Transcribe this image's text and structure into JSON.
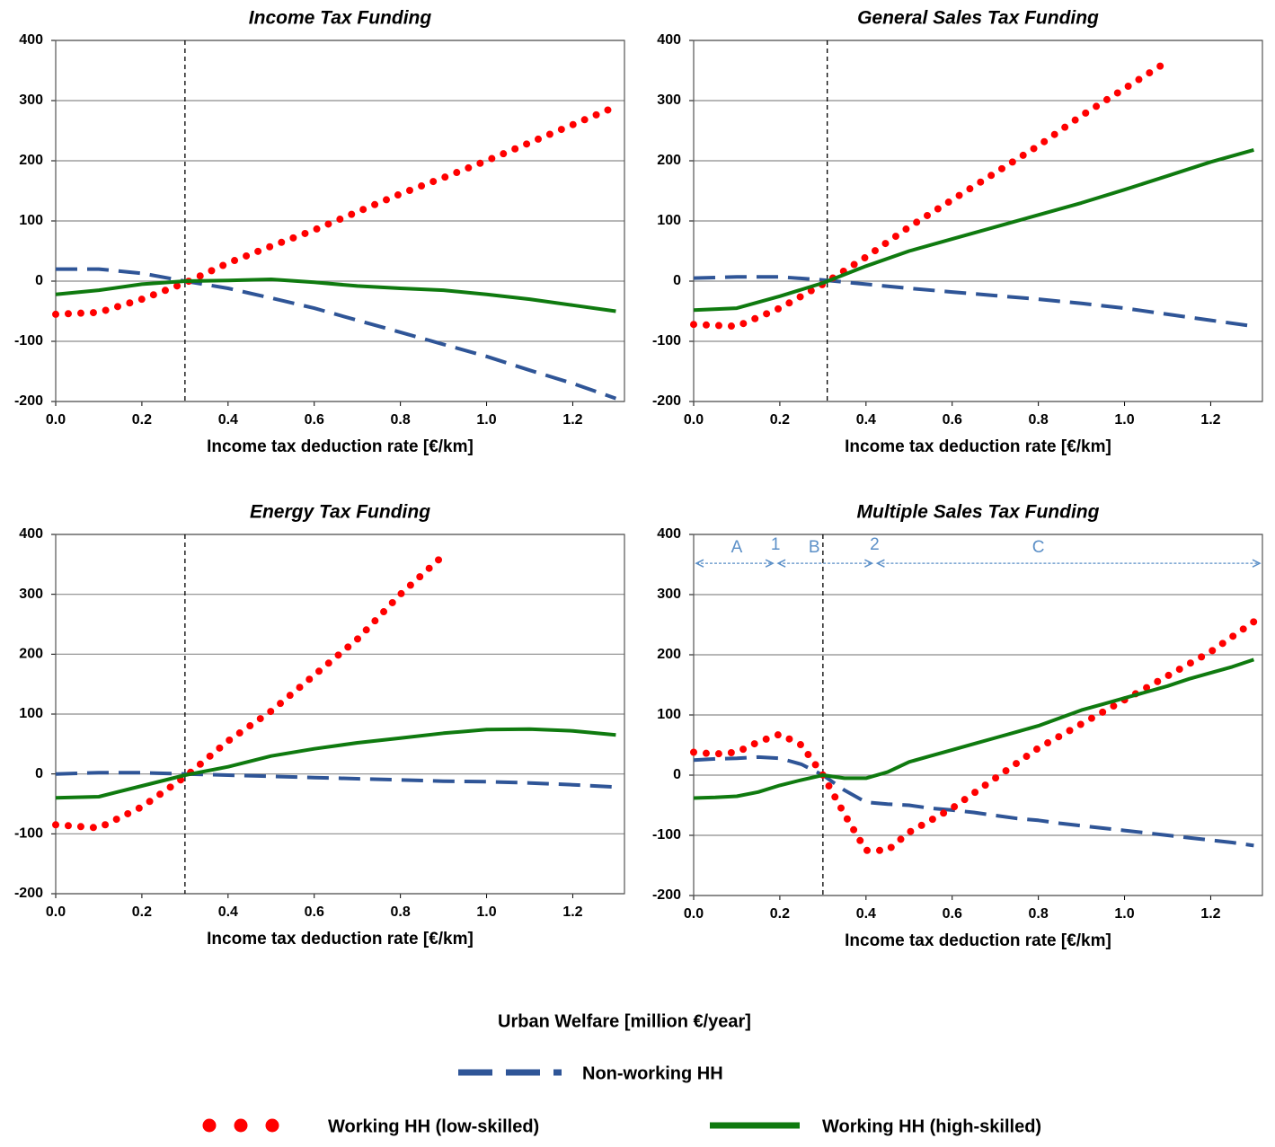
{
  "chart_data": [
    {
      "type": "line",
      "title": "Income Tax Funding",
      "xlabel": "Income tax deduction rate [€/km]",
      "x": [
        0,
        0.1,
        0.2,
        0.3,
        0.4,
        0.5,
        0.6,
        0.7,
        0.8,
        0.9,
        1.0,
        1.1,
        1.2,
        1.3
      ],
      "series": [
        {
          "name": "Non-working HH",
          "color": "#2f5597",
          "line_style": "dashed",
          "values": [
            20,
            20,
            13,
            0,
            -12,
            -28,
            -45,
            -65,
            -85,
            -105,
            -125,
            -148,
            -170,
            -195
          ]
        },
        {
          "name": "Working HH (low-skilled)",
          "color": "#ff0000",
          "line_style": "dotted",
          "values": [
            -55,
            -52,
            -30,
            -3,
            30,
            58,
            85,
            115,
            145,
            172,
            200,
            230,
            260,
            290
          ]
        },
        {
          "name": "Working HH (high-skilled)",
          "color": "#0f7a0f",
          "line_style": "solid",
          "values": [
            -22,
            -15,
            -5,
            0,
            1,
            3,
            -2,
            -8,
            -12,
            -15,
            -22,
            -30,
            -40,
            -50
          ]
        }
      ],
      "xlim": [
        0,
        1.32
      ],
      "ylim": [
        -200,
        400
      ],
      "xticks": [
        {
          "value": 0,
          "label": "0.0"
        },
        0.2,
        0.4,
        0.6,
        0.8,
        {
          "value": 1,
          "label": "1.0"
        },
        1.2
      ],
      "yticks": [
        -200,
        -100,
        0,
        100,
        200,
        300,
        400
      ],
      "grid": true,
      "vlines": [
        0.3
      ]
    },
    {
      "type": "line",
      "title": "General Sales Tax Funding",
      "xlabel": "Income tax deduction rate [€/km]",
      "x": [
        0,
        0.1,
        0.2,
        0.3,
        0.4,
        0.5,
        0.6,
        0.7,
        0.8,
        0.9,
        1.0,
        1.1,
        1.2,
        1.3
      ],
      "series": [
        {
          "name": "Non-working HH",
          "color": "#2f5597",
          "line_style": "dashed",
          "values": [
            5,
            7,
            7,
            2,
            -5,
            -12,
            -18,
            -24,
            -30,
            -37,
            -45,
            -55,
            -65,
            -75
          ]
        },
        {
          "name": "Working HH (low-skilled)",
          "color": "#ff0000",
          "line_style": "dotted",
          "values": [
            -72,
            -75,
            -45,
            -5,
            40,
            90,
            135,
            180,
            225,
            275,
            320,
            365,
            null,
            null
          ]
        },
        {
          "name": "Working HH (high-skilled)",
          "color": "#0f7a0f",
          "line_style": "solid",
          "values": [
            -48,
            -45,
            -25,
            -3,
            25,
            50,
            70,
            90,
            110,
            130,
            152,
            175,
            198,
            218
          ]
        }
      ],
      "xlim": [
        0,
        1.32
      ],
      "ylim": [
        -200,
        400
      ],
      "xticks": [
        {
          "value": 0,
          "label": "0.0"
        },
        0.2,
        0.4,
        0.6,
        0.8,
        {
          "value": 1,
          "label": "1.0"
        },
        1.2
      ],
      "yticks": [
        -200,
        -100,
        0,
        100,
        200,
        300,
        400
      ],
      "grid": true,
      "vlines": [
        0.31
      ]
    },
    {
      "type": "line",
      "title": "Energy Tax Funding",
      "xlabel": "Income tax deduction rate [€/km]",
      "x": [
        0,
        0.1,
        0.2,
        0.3,
        0.4,
        0.5,
        0.6,
        0.7,
        0.8,
        0.9,
        1.0,
        1.1,
        1.2,
        1.3
      ],
      "series": [
        {
          "name": "Non-working HH",
          "color": "#2f5597",
          "line_style": "dashed",
          "values": [
            0,
            2,
            2,
            0,
            -2,
            -4,
            -6,
            -8,
            -10,
            -12,
            -13,
            -15,
            -18,
            -22
          ]
        },
        {
          "name": "Working HH (low-skilled)",
          "color": "#ff0000",
          "line_style": "dotted",
          "values": [
            -85,
            -90,
            -55,
            -5,
            55,
            105,
            165,
            225,
            300,
            365,
            null,
            null,
            null,
            null
          ]
        },
        {
          "name": "Working HH (high-skilled)",
          "color": "#0f7a0f",
          "line_style": "solid",
          "values": [
            -40,
            -38,
            -20,
            -2,
            12,
            30,
            42,
            52,
            60,
            68,
            74,
            75,
            72,
            65
          ]
        }
      ],
      "xlim": [
        0,
        1.32
      ],
      "ylim": [
        -200,
        400
      ],
      "xticks": [
        {
          "value": 0,
          "label": "0.0"
        },
        0.2,
        0.4,
        0.6,
        0.8,
        {
          "value": 1,
          "label": "1.0"
        },
        1.2
      ],
      "yticks": [
        -200,
        -100,
        0,
        100,
        200,
        300,
        400
      ],
      "grid": true,
      "vlines": [
        0.3
      ]
    },
    {
      "type": "line",
      "title": "Multiple Sales Tax Funding",
      "xlabel": "Income tax deduction rate [€/km]",
      "x": [
        0,
        0.05,
        0.1,
        0.15,
        0.2,
        0.25,
        0.3,
        0.35,
        0.4,
        0.45,
        0.5,
        0.55,
        0.6,
        0.65,
        0.7,
        0.75,
        0.8,
        0.85,
        0.9,
        0.95,
        1.0,
        1.05,
        1.1,
        1.15,
        1.2,
        1.25,
        1.3
      ],
      "series": [
        {
          "name": "Non-working HH",
          "color": "#2f5597",
          "line_style": "dashed",
          "values": [
            25,
            27,
            28,
            30,
            28,
            18,
            0,
            -25,
            -45,
            -48,
            -50,
            -55,
            -58,
            -62,
            -67,
            -72,
            -75,
            -80,
            -84,
            -88,
            -92,
            -96,
            -100,
            -104,
            -108,
            -112,
            -117
          ]
        },
        {
          "name": "Working HH (low-skilled)",
          "color": "#ff0000",
          "line_style": "dotted",
          "values": [
            38,
            35,
            38,
            55,
            68,
            50,
            0,
            -65,
            -125,
            -125,
            -95,
            -75,
            -55,
            -30,
            -5,
            20,
            45,
            65,
            85,
            105,
            125,
            145,
            165,
            185,
            205,
            230,
            255
          ]
        },
        {
          "name": "Working HH (high-skilled)",
          "color": "#0f7a0f",
          "line_style": "solid",
          "values": [
            -38,
            -37,
            -35,
            -28,
            -17,
            -8,
            0,
            -5,
            -5,
            5,
            22,
            32,
            42,
            52,
            62,
            72,
            82,
            95,
            108,
            118,
            128,
            138,
            148,
            160,
            170,
            180,
            192
          ]
        }
      ],
      "xlim": [
        0,
        1.32
      ],
      "ylim": [
        -200,
        400
      ],
      "xticks": [
        {
          "value": 0,
          "label": "0.0"
        },
        0.2,
        0.4,
        0.6,
        0.8,
        {
          "value": 1,
          "label": "1.0"
        },
        1.2
      ],
      "yticks": [
        -200,
        -100,
        0,
        100,
        200,
        300,
        400
      ],
      "grid": true,
      "vlines": [
        0.3
      ],
      "annotations": [
        {
          "text": "A",
          "x": 0.1,
          "y": 378
        },
        {
          "text": "1",
          "x": 0.19,
          "y": 382
        },
        {
          "text": "B",
          "x": 0.28,
          "y": 378
        },
        {
          "text": "2",
          "x": 0.42,
          "y": 382
        },
        {
          "text": "C",
          "x": 0.8,
          "y": 378
        }
      ],
      "arrows": {
        "y": 352,
        "breaks": [
          0,
          0.19,
          0.42,
          1.32
        ]
      }
    }
  ],
  "legend": {
    "title": "Urban Welfare [million €/year]"
  }
}
